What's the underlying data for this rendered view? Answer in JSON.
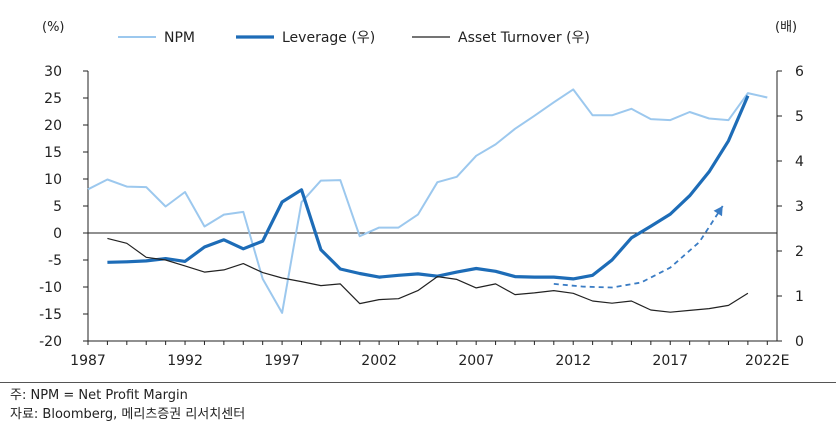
{
  "chart_data": {
    "type": "line",
    "left_axis_unit": "(%)",
    "right_axis_unit": "(배)",
    "x_ticks": [
      "1987",
      "1992",
      "1997",
      "2002",
      "2007",
      "2012",
      "2017",
      "2022E"
    ],
    "y_left_ticks": [
      "30",
      "25",
      "20",
      "15",
      "10",
      "5",
      "0",
      "-5",
      "-10",
      "-15",
      "-20"
    ],
    "y_right_ticks": [
      "6",
      "5",
      "4",
      "3",
      "2",
      "1",
      "0"
    ],
    "ylim_left": [
      -20,
      30
    ],
    "ylim_right": [
      0,
      6
    ],
    "xlim": [
      1987,
      2022.5
    ],
    "grid": false,
    "legend_position": "top",
    "series": [
      {
        "name": "NPM",
        "axis": "left",
        "color": "#9cc8ee",
        "x": [
          1987,
          1988,
          1989,
          1990,
          1991,
          1992,
          1993,
          1994,
          1995,
          1996,
          1997,
          1998,
          1999,
          2000,
          2001,
          2002,
          2003,
          2004,
          2005,
          2006,
          2007,
          2008,
          2009,
          2010,
          2011,
          2012,
          2013,
          2014,
          2015,
          2016,
          2017,
          2018,
          2019,
          2020,
          2021,
          2022
        ],
        "values": [
          8.1,
          9.9,
          8.6,
          8.5,
          4.9,
          7.6,
          1.2,
          3.4,
          3.9,
          -8.5,
          -14.8,
          5.7,
          9.7,
          9.8,
          -0.6,
          1.0,
          1.0,
          3.4,
          9.4,
          10.4,
          14.3,
          16.4,
          19.3,
          21.7,
          24.2,
          26.6,
          21.8,
          21.8,
          23.0,
          21.1,
          20.9,
          22.4,
          21.2,
          20.9,
          25.9,
          25.1
        ]
      },
      {
        "name": "Leverage (우)",
        "axis": "right",
        "color": "#1d6cb7",
        "x": [
          1988,
          1989,
          1990,
          1991,
          1992,
          1993,
          1994,
          1995,
          1996,
          1997,
          1998,
          1999,
          2000,
          2001,
          2002,
          2003,
          2004,
          2005,
          2006,
          2007,
          2008,
          2009,
          2010,
          2011,
          2012,
          2013,
          2014,
          2015,
          2016,
          2017,
          2018,
          2019,
          2020,
          2021
        ],
        "values": [
          1.75,
          1.76,
          1.78,
          1.83,
          1.77,
          2.09,
          2.25,
          2.05,
          2.22,
          3.09,
          3.36,
          2.03,
          1.6,
          1.5,
          1.42,
          1.46,
          1.49,
          1.44,
          1.53,
          1.61,
          1.55,
          1.43,
          1.42,
          1.42,
          1.38,
          1.46,
          1.8,
          2.29,
          2.55,
          2.82,
          3.23,
          3.76,
          4.45,
          5.45
        ]
      },
      {
        "name": "Asset Turnover (우)",
        "axis": "right",
        "color": "#222222",
        "x": [
          1988,
          1989,
          1990,
          1991,
          1992,
          1993,
          1994,
          1995,
          1996,
          1997,
          1998,
          1999,
          2000,
          2001,
          2002,
          2003,
          2004,
          2005,
          2006,
          2007,
          2008,
          2009,
          2010,
          2011,
          2012,
          2013,
          2014,
          2015,
          2016,
          2017,
          2018,
          2019,
          2020,
          2021
        ],
        "values": [
          2.28,
          2.17,
          1.86,
          1.8,
          1.67,
          1.53,
          1.58,
          1.72,
          1.52,
          1.4,
          1.32,
          1.23,
          1.27,
          0.83,
          0.92,
          0.94,
          1.12,
          1.43,
          1.37,
          1.18,
          1.27,
          1.03,
          1.07,
          1.12,
          1.06,
          0.89,
          0.84,
          0.89,
          0.69,
          0.64,
          0.68,
          0.72,
          0.79,
          1.06
        ]
      }
    ],
    "trend_arrow": {
      "color": "#3a7cc4",
      "x": [
        2011,
        2012.5,
        2014,
        2015.5,
        2017,
        2018.5,
        2019.7
      ],
      "values": [
        1.27,
        1.21,
        1.19,
        1.3,
        1.63,
        2.2,
        3.0
      ]
    }
  },
  "legend": [
    {
      "label": "NPM",
      "color": "#9cc8ee"
    },
    {
      "label": "Leverage (우)",
      "color": "#1d6cb7"
    },
    {
      "label": "Asset Turnover (우)",
      "color": "#222222"
    }
  ],
  "notes": {
    "note": "주: NPM = Net Profit Margin",
    "source": "자료: Bloomberg, 메리츠증권 리서치센터"
  }
}
